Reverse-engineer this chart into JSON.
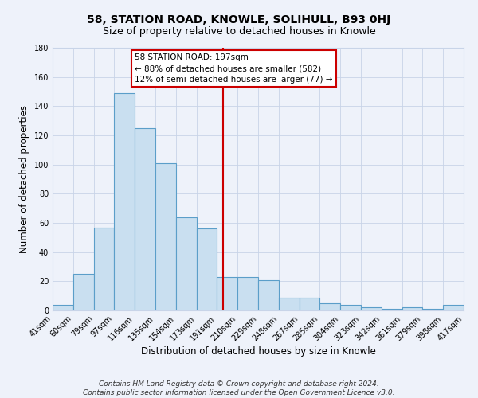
{
  "title": "58, STATION ROAD, KNOWLE, SOLIHULL, B93 0HJ",
  "subtitle": "Size of property relative to detached houses in Knowle",
  "xlabel": "Distribution of detached houses by size in Knowle",
  "ylabel": "Number of detached properties",
  "footer_line1": "Contains HM Land Registry data © Crown copyright and database right 2024.",
  "footer_line2": "Contains public sector information licensed under the Open Government Licence v3.0.",
  "bin_edges": [
    41,
    60,
    79,
    97,
    116,
    135,
    154,
    173,
    191,
    210,
    229,
    248,
    267,
    285,
    304,
    323,
    342,
    361,
    379,
    398,
    417
  ],
  "bin_labels": [
    "41sqm",
    "60sqm",
    "79sqm",
    "97sqm",
    "116sqm",
    "135sqm",
    "154sqm",
    "173sqm",
    "191sqm",
    "210sqm",
    "229sqm",
    "248sqm",
    "267sqm",
    "285sqm",
    "304sqm",
    "323sqm",
    "342sqm",
    "361sqm",
    "379sqm",
    "398sqm",
    "417sqm"
  ],
  "counts": [
    4,
    25,
    57,
    149,
    125,
    101,
    64,
    56,
    23,
    23,
    21,
    9,
    9,
    5,
    4,
    2,
    1,
    2,
    1,
    4
  ],
  "bar_color": "#c9dff0",
  "bar_edge_color": "#5b9ec9",
  "property_size": 197,
  "vline_color": "#cc0000",
  "annotation_line1": "58 STATION ROAD: 197sqm",
  "annotation_line2": "← 88% of detached houses are smaller (582)",
  "annotation_line3": "12% of semi-detached houses are larger (77) →",
  "annotation_box_color": "#ffffff",
  "annotation_box_edge": "#cc0000",
  "ylim": [
    0,
    180
  ],
  "yticks": [
    0,
    20,
    40,
    60,
    80,
    100,
    120,
    140,
    160,
    180
  ],
  "grid_color": "#c8d4e8",
  "background_color": "#eef2fa",
  "title_fontsize": 10,
  "subtitle_fontsize": 9,
  "footer_fontsize": 6.5,
  "tick_fontsize": 7,
  "ylabel_fontsize": 8.5,
  "xlabel_fontsize": 8.5,
  "annot_fontsize": 7.5
}
